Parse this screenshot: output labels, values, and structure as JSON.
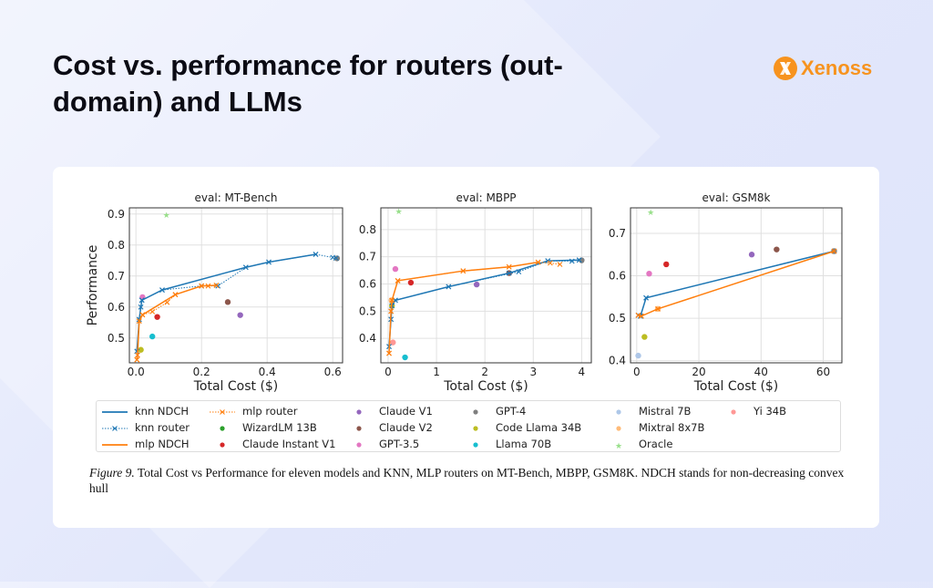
{
  "header": {
    "title": "Cost vs. performance for routers (out-domain) and LLMs",
    "logo": "Xenoss",
    "logo_color": "#f7931e"
  },
  "caption": {
    "label": "Figure 9.",
    "text": "Total Cost vs Performance for eleven models and KNN, MLP routers on MT-Bench, MBPP, GSM8K. NDCH stands for non-decreasing convex hull"
  },
  "legend": [
    {
      "label": "knn NDCH",
      "color": "#1f77b4",
      "style": "solid"
    },
    {
      "label": "knn router",
      "color": "#1f77b4",
      "style": "dotted-x"
    },
    {
      "label": "mlp NDCH",
      "color": "#ff7f0e",
      "style": "solid"
    },
    {
      "label": "mlp router",
      "color": "#ff7f0e",
      "style": "dotted-x"
    },
    {
      "label": "WizardLM 13B",
      "color": "#2ca02c",
      "style": "dot"
    },
    {
      "label": "Claude Instant V1",
      "color": "#d62728",
      "style": "dot"
    },
    {
      "label": "Claude V1",
      "color": "#9467bd",
      "style": "dot"
    },
    {
      "label": "Claude V2",
      "color": "#8c564b",
      "style": "dot"
    },
    {
      "label": "GPT-3.5",
      "color": "#e377c2",
      "style": "dot"
    },
    {
      "label": "GPT-4",
      "color": "#7f7f7f",
      "style": "dot"
    },
    {
      "label": "Code Llama 34B",
      "color": "#bcbd22",
      "style": "dot"
    },
    {
      "label": "Llama 70B",
      "color": "#17becf",
      "style": "dot"
    },
    {
      "label": "Mistral 7B",
      "color": "#aec7e8",
      "style": "dot"
    },
    {
      "label": "Mixtral 8x7B",
      "color": "#ffbb78",
      "style": "dot"
    },
    {
      "label": "Oracle",
      "color": "#98df8a",
      "style": "star"
    },
    {
      "label": "Yi 34B",
      "color": "#ff9896",
      "style": "dot"
    }
  ],
  "chart_data": [
    {
      "type": "line",
      "title": "eval: MT-Bench",
      "xlabel": "Total Cost ($)",
      "ylabel": "Performance",
      "xlim": [
        -0.02,
        0.63
      ],
      "ylim": [
        0.42,
        0.92
      ],
      "grid": true,
      "xticks": [
        "0.0",
        "0.2",
        "0.4",
        "0.6"
      ],
      "xtick_values": [
        0,
        0.2,
        0.4,
        0.6
      ],
      "yticks": [
        "0.5",
        "0.6",
        "0.7",
        "0.8",
        "0.9"
      ],
      "ytick_values": [
        0.5,
        0.6,
        0.7,
        0.8,
        0.9
      ],
      "series": [
        {
          "name": "knn NDCH",
          "points": [
            [
              0.003,
              0.457
            ],
            [
              0.01,
              0.56
            ],
            [
              0.015,
              0.6
            ],
            [
              0.018,
              0.622
            ],
            [
              0.08,
              0.655
            ],
            [
              0.335,
              0.728
            ],
            [
              0.405,
              0.745
            ],
            [
              0.548,
              0.77
            ]
          ]
        },
        {
          "name": "knn router",
          "points": [
            [
              0.003,
              0.457
            ],
            [
              0.01,
              0.56
            ],
            [
              0.018,
              0.622
            ],
            [
              0.08,
              0.655
            ],
            [
              0.2,
              0.668
            ],
            [
              0.25,
              0.668
            ],
            [
              0.335,
              0.728
            ],
            [
              0.405,
              0.745
            ],
            [
              0.548,
              0.77
            ],
            [
              0.6,
              0.76
            ],
            [
              0.61,
              0.758
            ]
          ]
        },
        {
          "name": "mlp NDCH",
          "points": [
            [
              0.003,
              0.43
            ],
            [
              0.005,
              0.445
            ],
            [
              0.01,
              0.555
            ],
            [
              0.02,
              0.575
            ],
            [
              0.12,
              0.64
            ],
            [
              0.2,
              0.668
            ],
            [
              0.245,
              0.67
            ]
          ]
        },
        {
          "name": "mlp router",
          "points": [
            [
              0.003,
              0.43
            ],
            [
              0.01,
              0.555
            ],
            [
              0.02,
              0.575
            ],
            [
              0.05,
              0.585
            ],
            [
              0.095,
              0.615
            ],
            [
              0.12,
              0.64
            ],
            [
              0.2,
              0.668
            ],
            [
              0.22,
              0.668
            ],
            [
              0.245,
              0.67
            ]
          ]
        }
      ],
      "models": [
        {
          "name": "Claude V1",
          "x": 0.318,
          "y": 0.574
        },
        {
          "name": "Claude V2",
          "x": 0.28,
          "y": 0.616
        },
        {
          "name": "GPT-4",
          "x": 0.613,
          "y": 0.757
        },
        {
          "name": "GPT-3.5",
          "x": 0.02,
          "y": 0.632
        },
        {
          "name": "Claude Instant V1",
          "x": 0.065,
          "y": 0.568
        },
        {
          "name": "Llama 70B",
          "x": 0.05,
          "y": 0.505
        },
        {
          "name": "Code Llama 34B",
          "x": 0.015,
          "y": 0.462
        },
        {
          "name": "Oracle",
          "x": 0.093,
          "y": 0.897
        }
      ]
    },
    {
      "type": "line",
      "title": "eval: MBPP",
      "xlabel": "Total Cost ($)",
      "ylabel": "",
      "xlim": [
        -0.15,
        4.2
      ],
      "ylim": [
        0.31,
        0.88
      ],
      "grid": true,
      "xticks": [
        "0",
        "1",
        "2",
        "3",
        "4"
      ],
      "xtick_values": [
        0,
        1,
        2,
        3,
        4
      ],
      "yticks": [
        "0.4",
        "0.5",
        "0.6",
        "0.7",
        "0.8"
      ],
      "ytick_values": [
        0.4,
        0.5,
        0.6,
        0.7,
        0.8
      ],
      "series": [
        {
          "name": "knn NDCH",
          "points": [
            [
              0.02,
              0.37
            ],
            [
              0.06,
              0.47
            ],
            [
              0.08,
              0.52
            ],
            [
              0.15,
              0.54
            ],
            [
              1.25,
              0.59
            ],
            [
              2.5,
              0.64
            ],
            [
              3.3,
              0.685
            ],
            [
              3.95,
              0.688
            ]
          ]
        },
        {
          "name": "knn router",
          "points": [
            [
              0.02,
              0.37
            ],
            [
              0.06,
              0.47
            ],
            [
              0.08,
              0.52
            ],
            [
              0.15,
              0.54
            ],
            [
              1.25,
              0.59
            ],
            [
              2.7,
              0.645
            ],
            [
              3.3,
              0.685
            ],
            [
              3.8,
              0.684
            ],
            [
              3.95,
              0.688
            ]
          ]
        },
        {
          "name": "mlp NDCH",
          "points": [
            [
              0.02,
              0.345
            ],
            [
              0.06,
              0.5
            ],
            [
              0.08,
              0.54
            ],
            [
              0.2,
              0.612
            ],
            [
              1.55,
              0.648
            ],
            [
              2.5,
              0.663
            ],
            [
              3.1,
              0.68
            ]
          ]
        },
        {
          "name": "mlp router",
          "points": [
            [
              0.02,
              0.345
            ],
            [
              0.06,
              0.5
            ],
            [
              0.08,
              0.54
            ],
            [
              0.2,
              0.612
            ],
            [
              1.55,
              0.648
            ],
            [
              2.5,
              0.663
            ],
            [
              3.1,
              0.68
            ],
            [
              3.35,
              0.677
            ],
            [
              3.55,
              0.672
            ]
          ]
        }
      ],
      "models": [
        {
          "name": "Oracle",
          "x": 0.22,
          "y": 0.866
        },
        {
          "name": "GPT-3.5",
          "x": 0.15,
          "y": 0.655
        },
        {
          "name": "Claude Instant V1",
          "x": 0.47,
          "y": 0.605
        },
        {
          "name": "Claude V1",
          "x": 1.83,
          "y": 0.598
        },
        {
          "name": "Claude V2",
          "x": 2.5,
          "y": 0.64
        },
        {
          "name": "GPT-4",
          "x": 4.0,
          "y": 0.687
        },
        {
          "name": "Llama 70B",
          "x": 0.35,
          "y": 0.33
        },
        {
          "name": "Yi 34B",
          "x": 0.1,
          "y": 0.385
        },
        {
          "name": "Mixtral 8x7B",
          "x": 0.07,
          "y": 0.54
        },
        {
          "name": "Code Llama 34B",
          "x": 0.08,
          "y": 0.52
        }
      ]
    },
    {
      "type": "line",
      "title": "eval: GSM8k",
      "xlabel": "Total Cost ($)",
      "ylabel": "",
      "xlim": [
        -2,
        66
      ],
      "ylim": [
        0.395,
        0.76
      ],
      "grid": true,
      "xticks": [
        "0",
        "20",
        "40",
        "60"
      ],
      "xtick_values": [
        0,
        20,
        40,
        60
      ],
      "yticks": [
        "0.4",
        "0.5",
        "0.6",
        "0.7"
      ],
      "ytick_values": [
        0.4,
        0.5,
        0.6,
        0.7
      ],
      "series": [
        {
          "name": "knn NDCH",
          "points": [
            [
              0.5,
              0.507
            ],
            [
              1.2,
              0.505
            ],
            [
              3,
              0.548
            ],
            [
              63.5,
              0.658
            ]
          ]
        },
        {
          "name": "knn router",
          "points": [
            [
              0.5,
              0.507
            ],
            [
              1.2,
              0.505
            ],
            [
              3,
              0.548
            ],
            [
              63.5,
              0.658
            ]
          ]
        },
        {
          "name": "mlp NDCH",
          "points": [
            [
              0.5,
              0.507
            ],
            [
              1.5,
              0.505
            ],
            [
              6.8,
              0.522
            ],
            [
              63.5,
              0.658
            ]
          ]
        },
        {
          "name": "mlp router",
          "points": [
            [
              0.5,
              0.507
            ],
            [
              1.5,
              0.505
            ],
            [
              6.8,
              0.522
            ],
            [
              63.5,
              0.658
            ]
          ]
        }
      ],
      "models": [
        {
          "name": "Oracle",
          "x": 4.5,
          "y": 0.749
        },
        {
          "name": "Claude Instant V1",
          "x": 9.5,
          "y": 0.627
        },
        {
          "name": "GPT-3.5",
          "x": 4,
          "y": 0.605
        },
        {
          "name": "Claude V1",
          "x": 37,
          "y": 0.65
        },
        {
          "name": "Claude V2",
          "x": 45,
          "y": 0.662
        },
        {
          "name": "Code Llama 34B",
          "x": 2.5,
          "y": 0.456
        },
        {
          "name": "Mistral 7B",
          "x": 0.5,
          "y": 0.412
        },
        {
          "name": "Mixtral 8x7B",
          "x": 6.8,
          "y": 0.522
        },
        {
          "name": "GPT-4",
          "x": 63.5,
          "y": 0.658
        }
      ]
    }
  ]
}
